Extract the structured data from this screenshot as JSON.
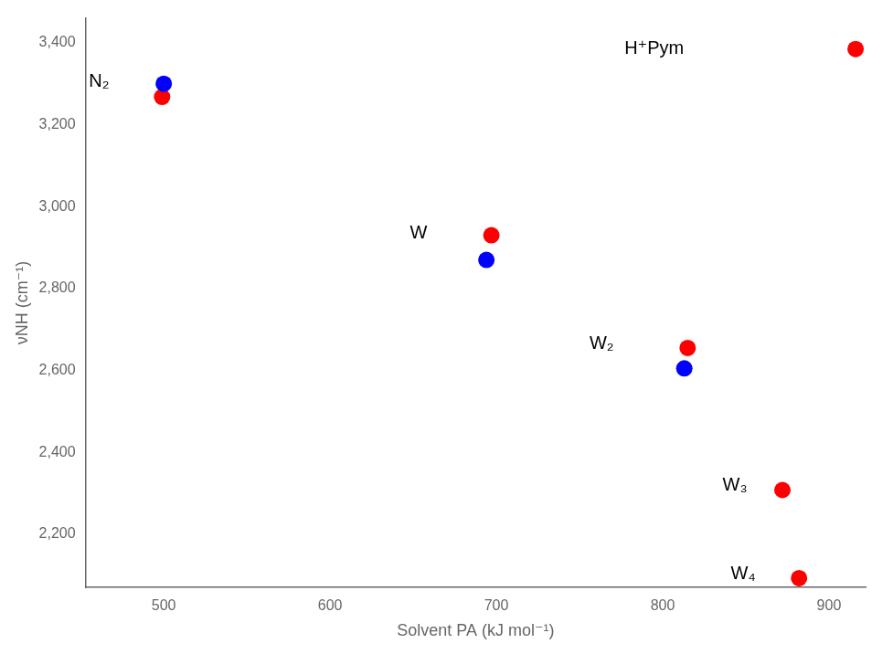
{
  "chart_data": {
    "type": "scatter",
    "xlabel": "Solvent PA (kJ mol⁻¹)",
    "ylabel": "νNH (cm⁻¹)",
    "xlim": [
      453,
      922
    ],
    "ylim": [
      2070,
      3460
    ],
    "xticks": [
      500,
      600,
      700,
      800,
      900
    ],
    "yticks": [
      2200,
      2400,
      2600,
      2800,
      3000,
      3200,
      3400
    ],
    "grid": false,
    "series": [
      {
        "color": "#0000ff",
        "x": [
          500,
          694,
          813
        ],
        "values": [
          3300,
          2870,
          2605
        ]
      },
      {
        "color": "#ff0000",
        "x": [
          499,
          697,
          815,
          872,
          882,
          916
        ],
        "values": [
          3268,
          2930,
          2655,
          2308,
          2093,
          3385
        ]
      }
    ],
    "annotations": [
      {
        "text": "N₂",
        "x": 455,
        "y": 3305
      },
      {
        "text": "W",
        "x": 648,
        "y": 2935
      },
      {
        "text": "W₂",
        "x": 756,
        "y": 2665
      },
      {
        "text": "W₃",
        "x": 836,
        "y": 2320
      },
      {
        "text": "W₄",
        "x": 841,
        "y": 2103
      },
      {
        "text": "H⁺Pym",
        "x": 777,
        "y": 3385
      }
    ]
  }
}
